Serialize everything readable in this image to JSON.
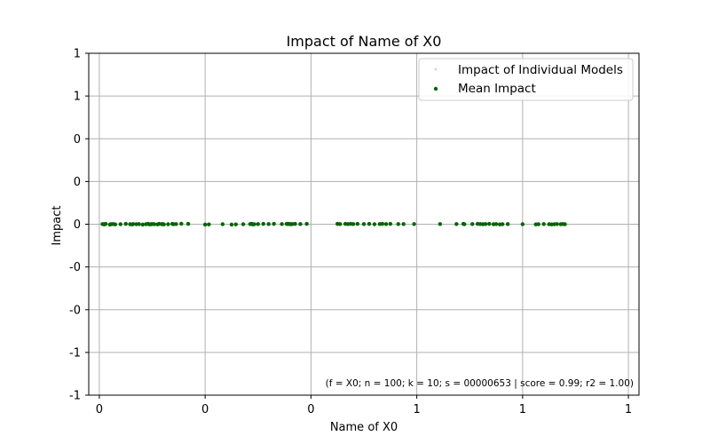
{
  "chart_data": {
    "type": "scatter",
    "title": "Impact of Name of X0",
    "xlabel": "Name of X0",
    "ylabel": "Impact",
    "xlim": [
      -0.02,
      1.02
    ],
    "ylim": [
      -1,
      1
    ],
    "grid": true,
    "x_ticks": [
      {
        "value": 0.0,
        "label": "0"
      },
      {
        "value": 0.2,
        "label": "0"
      },
      {
        "value": 0.4,
        "label": "0"
      },
      {
        "value": 0.6,
        "label": "1"
      },
      {
        "value": 0.8,
        "label": "1"
      },
      {
        "value": 1.0,
        "label": "1"
      }
    ],
    "y_ticks": [
      {
        "value": 1.0,
        "label": "1"
      },
      {
        "value": 0.75,
        "label": "1"
      },
      {
        "value": 0.5,
        "label": "0"
      },
      {
        "value": 0.25,
        "label": "0"
      },
      {
        "value": 0.0,
        "label": "0"
      },
      {
        "value": -0.25,
        "label": "-0"
      },
      {
        "value": -0.5,
        "label": "-0"
      },
      {
        "value": -0.75,
        "label": "-1"
      },
      {
        "value": -1.0,
        "label": "-1"
      }
    ],
    "legend": {
      "placement": "top-right",
      "entries": [
        "Impact of Individual Models",
        "Mean Impact"
      ]
    },
    "annotation": "(f = X0; n = 100; k = 10; s = 00000653 | score = 0.99; r2 = 1.00)",
    "series": [
      {
        "name": "Mean Impact",
        "color": "#006400",
        "x": [
          0.006,
          0.009,
          0.01,
          0.012,
          0.02,
          0.022,
          0.026,
          0.03,
          0.04,
          0.05,
          0.058,
          0.062,
          0.064,
          0.07,
          0.075,
          0.082,
          0.088,
          0.092,
          0.095,
          0.098,
          0.1,
          0.104,
          0.11,
          0.113,
          0.118,
          0.12,
          0.122,
          0.13,
          0.138,
          0.14,
          0.145,
          0.155,
          0.168,
          0.2,
          0.207,
          0.233,
          0.25,
          0.258,
          0.272,
          0.285,
          0.288,
          0.29,
          0.293,
          0.3,
          0.31,
          0.32,
          0.33,
          0.345,
          0.354,
          0.356,
          0.358,
          0.36,
          0.362,
          0.365,
          0.37,
          0.38,
          0.392,
          0.45,
          0.455,
          0.465,
          0.47,
          0.475,
          0.48,
          0.488,
          0.5,
          0.51,
          0.52,
          0.53,
          0.535,
          0.542,
          0.55,
          0.565,
          0.575,
          0.595,
          0.644,
          0.675,
          0.688,
          0.69,
          0.705,
          0.715,
          0.72,
          0.725,
          0.73,
          0.737,
          0.745,
          0.75,
          0.757,
          0.762,
          0.772,
          0.8,
          0.825,
          0.83,
          0.84,
          0.85,
          0.855,
          0.86,
          0.865,
          0.872,
          0.876,
          0.88
        ],
        "y": [
          0.001,
          -0.001,
          0.0,
          0.002,
          -0.002,
          0.0,
          0.001,
          -0.001,
          0.0,
          0.002,
          0.0,
          -0.001,
          0.001,
          0.0,
          0.001,
          -0.002,
          0.0,
          0.002,
          -0.001,
          0.0,
          0.001,
          0.0,
          -0.001,
          0.002,
          0.0,
          0.001,
          -0.001,
          0.0,
          0.002,
          0.0,
          0.001,
          0.003,
          0.002,
          -0.002,
          -0.001,
          0.0,
          -0.002,
          -0.001,
          0.0,
          0.001,
          0.002,
          -0.001,
          0.0,
          0.001,
          0.002,
          0.001,
          0.002,
          0.001,
          0.002,
          0.001,
          0.002,
          0.001,
          0.0,
          0.001,
          0.002,
          0.001,
          0.002,
          0.002,
          0.001,
          0.002,
          0.001,
          0.002,
          0.001,
          0.002,
          0.001,
          0.002,
          0.0,
          0.001,
          0.002,
          0.001,
          0.002,
          0.001,
          0.001,
          0.001,
          0.001,
          0.001,
          0.002,
          0.0,
          0.001,
          0.002,
          0.001,
          0.0,
          0.001,
          0.002,
          0.0,
          0.001,
          -0.001,
          0.0,
          0.001,
          0.0,
          -0.001,
          0.0,
          0.001,
          0.0,
          -0.001,
          0.0,
          0.001,
          0.0,
          0.001,
          0.0
        ]
      }
    ]
  }
}
